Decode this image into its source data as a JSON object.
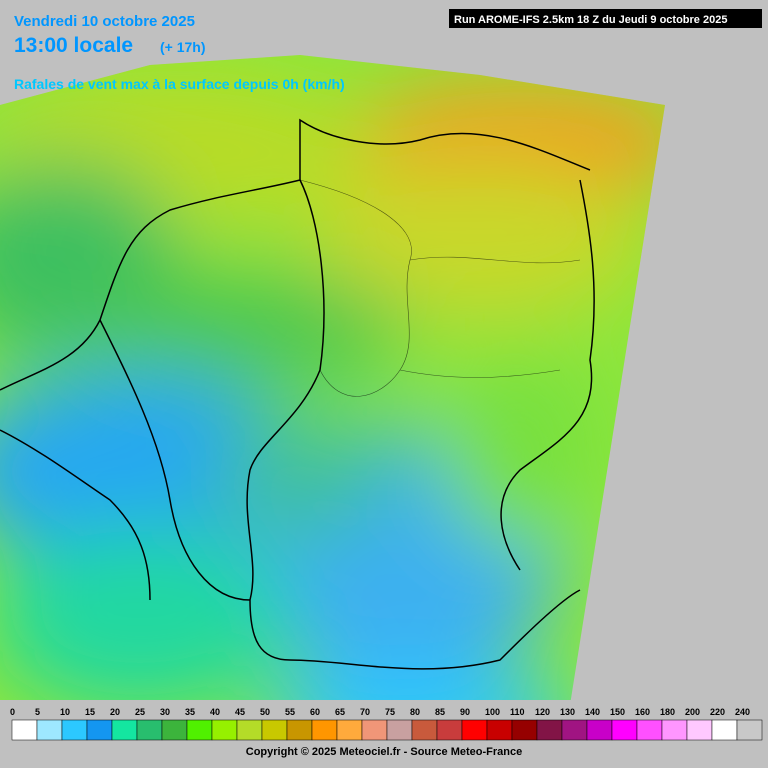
{
  "header": {
    "date": "Vendredi 10 octobre 2025",
    "time": "13:00 locale",
    "lead": "(+ 17h)",
    "subtitle": "Rafales de vent max à la surface depuis 0h (km/h)",
    "run": "Run AROME-IFS 2.5km 18 Z du Jeudi 9 octobre 2025"
  },
  "legend": {
    "labels": [
      0,
      5,
      10,
      15,
      20,
      25,
      30,
      35,
      40,
      45,
      50,
      55,
      60,
      65,
      70,
      75,
      80,
      85,
      90,
      100,
      110,
      120,
      130,
      140,
      150,
      160,
      180,
      200,
      220,
      240
    ],
    "colors": [
      "#ffffff",
      "#9ee8ff",
      "#2cc8ff",
      "#1496f0",
      "#14e6a0",
      "#28be6e",
      "#3cb43c",
      "#50f000",
      "#96f000",
      "#b4dc28",
      "#c8c800",
      "#c89600",
      "#ff9600",
      "#ffaa3c",
      "#f09678",
      "#c8a0a0",
      "#c85a3c",
      "#c83c3c",
      "#ff0000",
      "#c80000",
      "#960000",
      "#821446",
      "#a01482",
      "#c800c8",
      "#ff00ff",
      "#ff50ff",
      "#ff96ff",
      "#ffc8ff",
      "#ffffff",
      "#c8c8c8"
    ]
  },
  "footer": {
    "copyright": "Copyright © 2025 Meteociel.fr - Source Meteo-France"
  }
}
